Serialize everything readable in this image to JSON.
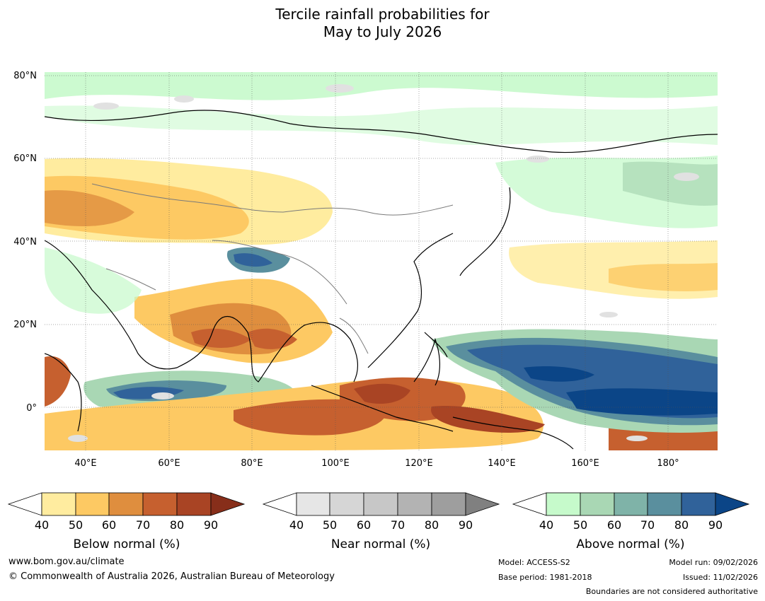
{
  "title": {
    "line1": "Tercile rainfall probabilities for",
    "line2": "May to July 2026"
  },
  "map": {
    "lat_labels": [
      "80°N",
      "60°N",
      "40°N",
      "20°N",
      "0°"
    ],
    "lon_labels": [
      "40°E",
      "60°E",
      "80°E",
      "100°E",
      "120°E",
      "140°E",
      "160°E",
      "180°"
    ]
  },
  "legends": [
    {
      "label": "Below normal (%)",
      "ticks": [
        "40",
        "50",
        "60",
        "70",
        "80",
        "90"
      ],
      "colors": [
        "#ffffff",
        "#ffec9f",
        "#fdc963",
        "#df8e3e",
        "#c6602f",
        "#a94424",
        "#872e1a"
      ]
    },
    {
      "label": "Near normal (%)",
      "ticks": [
        "40",
        "50",
        "60",
        "70",
        "80",
        "90"
      ],
      "colors": [
        "#ffffff",
        "#e6e6e6",
        "#d6d6d6",
        "#c7c7c7",
        "#b3b3b3",
        "#9e9e9e",
        "#808080"
      ]
    },
    {
      "label": "Above normal (%)",
      "ticks": [
        "40",
        "50",
        "60",
        "70",
        "80",
        "90"
      ],
      "colors": [
        "#ffffff",
        "#c6facb",
        "#a9d7b4",
        "#7fb3a8",
        "#5a8f9e",
        "#30629a",
        "#0b4587"
      ]
    }
  ],
  "colors": {
    "below_light": "#ffec9f",
    "below_mid": "#fdc963",
    "below_dark": "#c6602f",
    "below_vdark": "#a94424",
    "near": "#e1e1e1",
    "above_light": "#c6facb",
    "above_mid": "#a9d7b4",
    "above_dark": "#30629a",
    "above_vdark": "#0b4587"
  },
  "footer": {
    "website": "www.bom.gov.au/climate",
    "copyright": "© Commonwealth of Australia 2026, Australian Bureau of Meteorology",
    "model": "Model: ACCESS-S2",
    "base_period": "Base period: 1981-2018",
    "model_run": "Model run: 09/02/2026",
    "issued": "Issued: 11/02/2026",
    "disclaimer": "Boundaries are not considered authoritative"
  }
}
